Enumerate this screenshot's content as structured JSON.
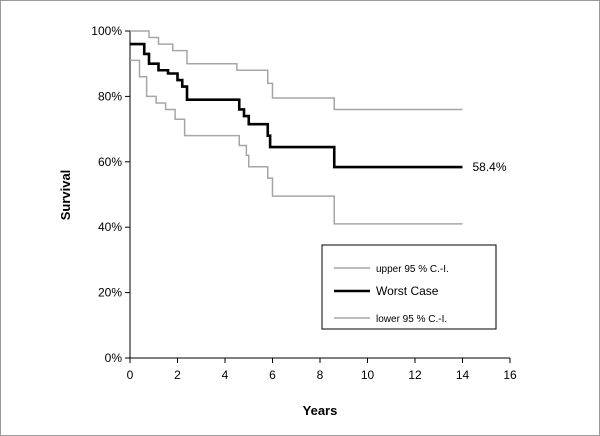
{
  "chart_data": {
    "type": "line",
    "title": "",
    "xlabel": "Years",
    "ylabel": "Survival",
    "xlim": [
      0,
      16
    ],
    "ylim": [
      0,
      100
    ],
    "x_ticks": [
      "0",
      "2",
      "4",
      "6",
      "8",
      "10",
      "12",
      "14",
      "16"
    ],
    "y_ticks": [
      "0%",
      "20%",
      "40%",
      "60%",
      "80%",
      "100%"
    ],
    "grid": false,
    "legend_position": "bottom-right",
    "annotation": {
      "text": "58.4%",
      "x": 14,
      "y": 58.4
    },
    "series": [
      {
        "name": "upper 95 % C.-I.",
        "color": "#a6a6a6",
        "width": 1.5,
        "step": true,
        "x": [
          0,
          0.8,
          1.2,
          1.8,
          2.4,
          4.5,
          5.8,
          6.0,
          8.6,
          14
        ],
        "y": [
          100,
          98,
          96,
          94,
          90,
          88,
          84,
          79.5,
          76,
          76
        ]
      },
      {
        "name": "Worst Case",
        "color": "#000000",
        "width": 2.6,
        "step": true,
        "x": [
          0,
          0.6,
          0.8,
          1.2,
          1.6,
          2.0,
          2.2,
          2.4,
          4.6,
          4.8,
          5.0,
          5.8,
          5.9,
          8.6,
          14
        ],
        "y": [
          96,
          93,
          90,
          88,
          87,
          85,
          83,
          79,
          76,
          74,
          71.5,
          68,
          64.5,
          58.4,
          58.4
        ]
      },
      {
        "name": "lower 95 % C.-I.",
        "color": "#a6a6a6",
        "width": 1.5,
        "step": true,
        "x": [
          0,
          0.4,
          0.7,
          1.1,
          1.5,
          1.9,
          2.3,
          4.6,
          4.9,
          5.0,
          5.8,
          6.0,
          8.6,
          14
        ],
        "y": [
          91,
          86,
          80,
          78,
          76,
          73,
          68,
          65,
          62,
          58.5,
          55,
          49.5,
          41,
          41
        ]
      }
    ],
    "legend_order": [
      "upper 95 % C.-I.",
      "Worst Case",
      "lower 95 % C.-I."
    ]
  }
}
